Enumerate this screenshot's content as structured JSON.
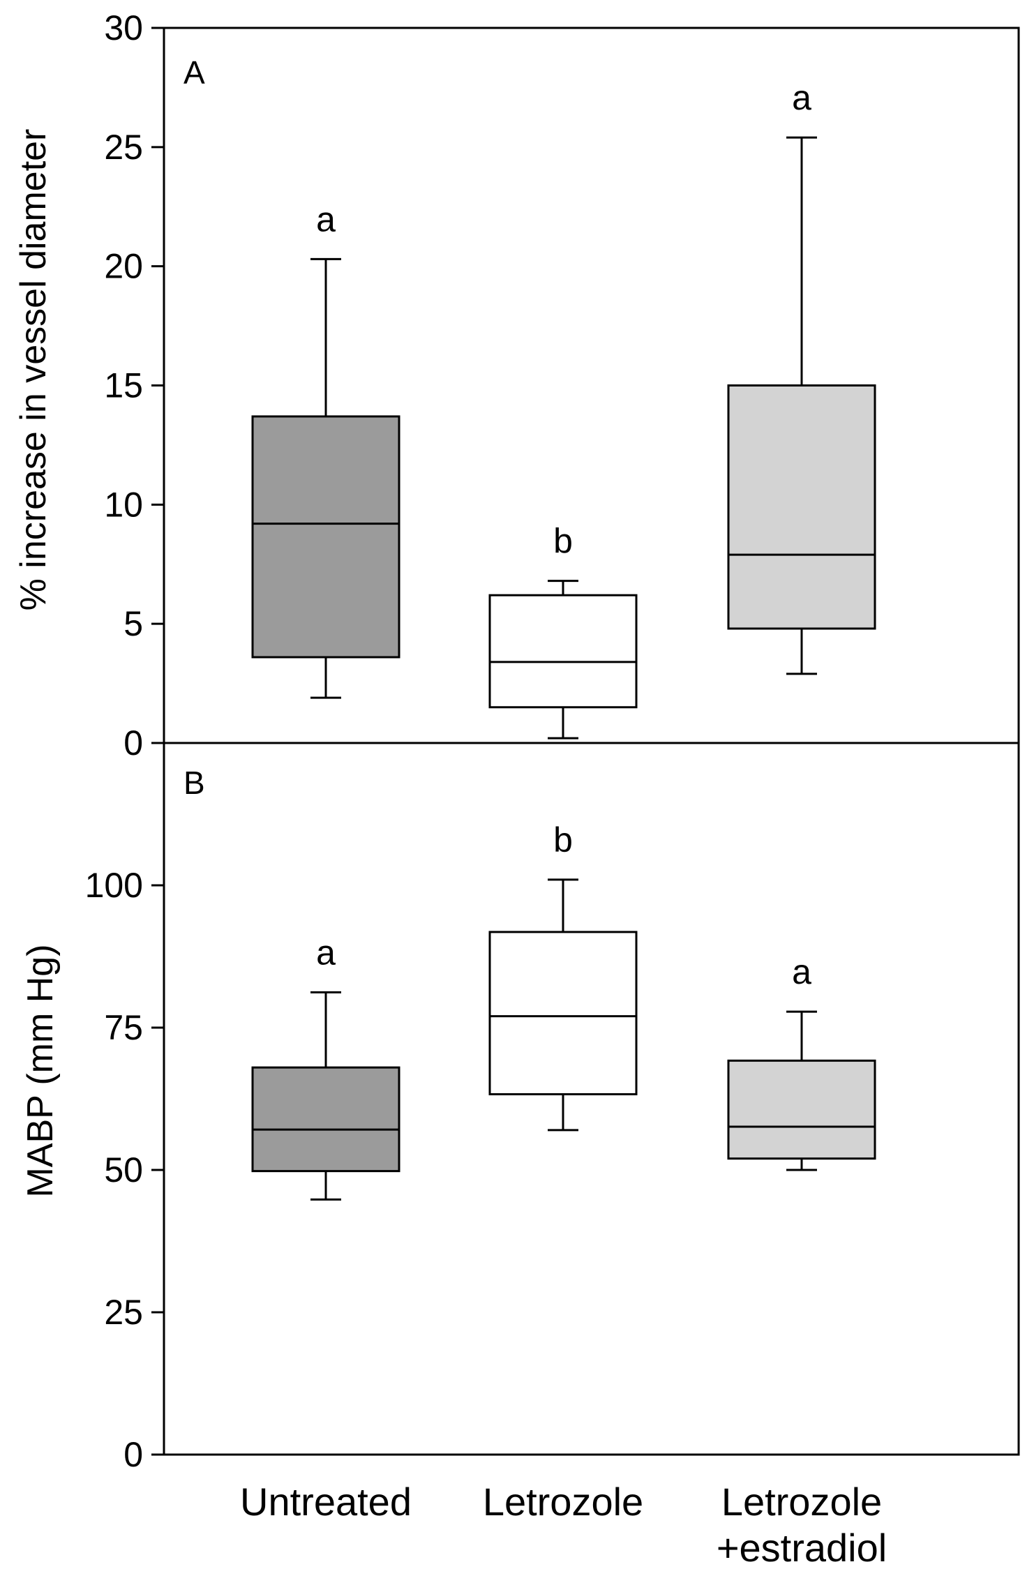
{
  "chart_data": [
    {
      "type": "box",
      "panel_label": "A",
      "ylabel": "% increase in vessel diameter",
      "ylim": [
        0,
        30
      ],
      "yticks": [
        "0",
        "5",
        "10",
        "15",
        "20",
        "25",
        "30"
      ],
      "categories": [
        "Untreated",
        "Letrozole",
        "Letrozole +estradiol"
      ],
      "boxes": [
        {
          "category": "Untreated",
          "whisker_low": 1.9,
          "q1": 3.6,
          "median": 9.2,
          "q3": 13.7,
          "whisker_high": 20.3,
          "significance": "a",
          "color": "#9b9b9b"
        },
        {
          "category": "Letrozole",
          "whisker_low": 0.2,
          "q1": 1.5,
          "median": 3.4,
          "q3": 6.2,
          "whisker_high": 6.8,
          "significance": "b",
          "color": "#ffffff"
        },
        {
          "category": "Letrozole +estradiol",
          "whisker_low": 2.9,
          "q1": 4.8,
          "median": 7.9,
          "q3": 15.0,
          "whisker_high": 25.4,
          "significance": "a",
          "color": "#d3d3d3"
        }
      ]
    },
    {
      "type": "box",
      "panel_label": "B",
      "ylabel": "MABP (mm Hg)",
      "ylim": [
        0,
        125
      ],
      "yticks": [
        "0",
        "25",
        "50",
        "75",
        "100"
      ],
      "categories": [
        "Untreated",
        "Letrozole",
        "Letrozole +estradiol"
      ],
      "boxes": [
        {
          "category": "Untreated",
          "whisker_low": 44.8,
          "q1": 49.8,
          "median": 57.1,
          "q3": 68.0,
          "whisker_high": 81.2,
          "significance": "a",
          "color": "#9b9b9b"
        },
        {
          "category": "Letrozole",
          "whisker_low": 57.0,
          "q1": 63.3,
          "median": 77.0,
          "q3": 91.8,
          "whisker_high": 101.0,
          "significance": "b",
          "color": "#ffffff"
        },
        {
          "category": "Letrozole +estradiol",
          "whisker_low": 50.0,
          "q1": 52.0,
          "median": 57.6,
          "q3": 69.2,
          "whisker_high": 77.8,
          "significance": "a",
          "color": "#d3d3d3"
        }
      ]
    }
  ],
  "x_axis": {
    "labels": [
      {
        "lines": [
          "Untreated"
        ]
      },
      {
        "lines": [
          "Letrozole"
        ]
      },
      {
        "lines": [
          "Letrozole",
          "+estradiol"
        ]
      }
    ]
  }
}
